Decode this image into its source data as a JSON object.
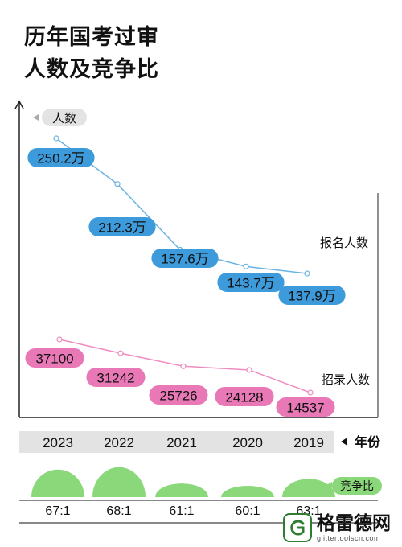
{
  "title_line1": "历年国考过审",
  "title_line2": "人数及竞争比",
  "y_axis_badge": "人数",
  "x_axis_label": "年份",
  "ratio_label": "竞争比",
  "series_labels": {
    "applicants": "报名人数",
    "hires": "招录人数"
  },
  "watermark": {
    "name": "格雷德网",
    "url": "glittertoolscn.com"
  },
  "colors": {
    "applicants_line": "#6ab3e3",
    "applicants_badge": "#3d9bdb",
    "hires_line": "#ef8cc0",
    "hires_badge": "#e978b6",
    "ratio_dome": "#8bd87a",
    "year_band": "#e3e3e3"
  },
  "chart_data": {
    "type": "line",
    "x": [
      "2023",
      "2022",
      "2021",
      "2020",
      "2019"
    ],
    "series": [
      {
        "name": "报名人数",
        "values": [
          2502000,
          2123000,
          1576000,
          1437000,
          1379000
        ],
        "labels": [
          "250.2万",
          "212.3万",
          "157.6万",
          "143.7万",
          "137.9万"
        ]
      },
      {
        "name": "招录人数",
        "values": [
          37100,
          31242,
          25726,
          24128,
          14537
        ],
        "labels": [
          "37100",
          "31242",
          "25726",
          "24128",
          "14537"
        ]
      }
    ],
    "competition_ratio": [
      {
        "year": "2023",
        "label": "67:1",
        "value": 67
      },
      {
        "year": "2022",
        "label": "68:1",
        "value": 68
      },
      {
        "year": "2021",
        "label": "61:1",
        "value": 61
      },
      {
        "year": "2020",
        "label": "60:1",
        "value": 60
      },
      {
        "year": "2019",
        "label": "63:1",
        "value": 63
      }
    ]
  }
}
